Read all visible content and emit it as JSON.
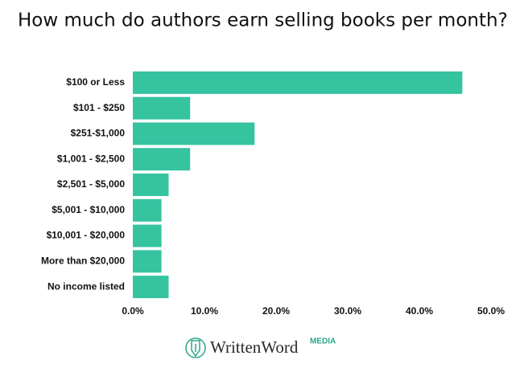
{
  "chart_data": {
    "type": "bar",
    "orientation": "horizontal",
    "title": "How much do authors earn selling books per month?",
    "categories": [
      "$100 or Less",
      "$101 - $250",
      "$251-$1,000",
      "$1,001 - $2,500",
      "$2,501 - $5,000",
      "$5,001 - $10,000",
      "$10,001 - $20,000",
      "More than $20,000",
      "No income listed"
    ],
    "values": [
      46,
      8,
      17,
      8,
      5,
      4,
      4,
      4,
      5
    ],
    "color": "#35c3a0",
    "xlim": [
      0,
      50
    ],
    "xticks": [
      {
        "value": 0,
        "label": "0.0%"
      },
      {
        "value": 10,
        "label": "10.0%"
      },
      {
        "value": 20,
        "label": "20.0%"
      },
      {
        "value": 30,
        "label": "30.0%"
      },
      {
        "value": 40,
        "label": "40.0%"
      },
      {
        "value": 50,
        "label": "50.0%"
      }
    ],
    "grid": false
  },
  "logo": {
    "name": "WrittenWord",
    "suffix": "MEDIA"
  }
}
